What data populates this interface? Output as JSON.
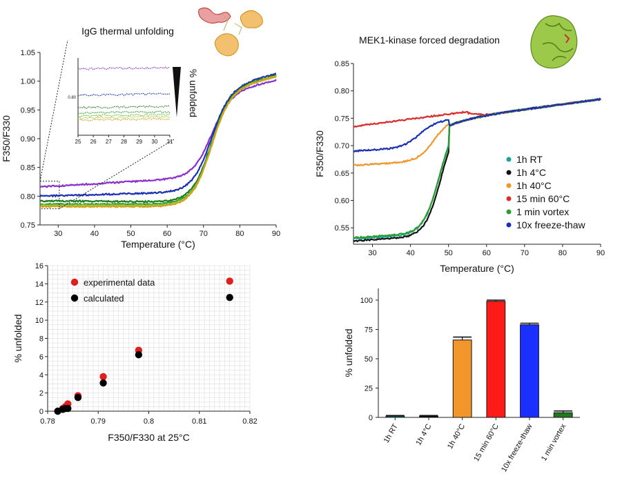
{
  "chart_data": [
    {
      "id": "igg",
      "type": "line",
      "title": "IgG thermal unfolding",
      "xlabel": "Temperature (°C)",
      "ylabel": "F350/F330",
      "xlim": [
        25,
        90
      ],
      "ylim": [
        0.75,
        1.05
      ],
      "xticks": [
        "30",
        "40",
        "50",
        "60",
        "70",
        "80",
        "90"
      ],
      "yticks": [
        "0.75",
        "0.80",
        "0.85",
        "0.90",
        "0.95",
        "1.00",
        "1.05"
      ],
      "tm": 72,
      "final_base": 0.99,
      "final_slope": 0.00155,
      "series": [
        {
          "color": "#8b2fd1",
          "start": 0.816,
          "mid": 0.829,
          "end": 1.002
        },
        {
          "color": "#1b2fb5",
          "start": 0.8,
          "mid": 0.806,
          "end": 1.012
        },
        {
          "color": "#1f7a1f",
          "start": 0.792,
          "mid": 0.79,
          "end": 1.01
        },
        {
          "color": "#2e9b2e",
          "start": 0.786,
          "mid": 0.786,
          "end": 1.008
        },
        {
          "color": "#6cbf3a",
          "start": 0.784,
          "mid": 0.784,
          "end": 1.008
        },
        {
          "color": "#a8cf3a",
          "start": 0.783,
          "mid": 0.783,
          "end": 1.008
        },
        {
          "color": "#d4a020",
          "start": 0.782,
          "mid": 0.782,
          "end": 1.008
        }
      ],
      "inset": {
        "xticks": [
          "25",
          "26",
          "27",
          "28",
          "29",
          "30",
          "31"
        ],
        "ytick": "0.80",
        "label": "% unfolded"
      }
    },
    {
      "id": "mek1",
      "type": "line",
      "title": "MEK1-kinase forced degradation",
      "xlabel": "Temperature (°C)",
      "ylabel": "F350/F330",
      "xlim": [
        25,
        90
      ],
      "ylim": [
        0.52,
        0.85
      ],
      "xticks": [
        "30",
        "40",
        "50",
        "60",
        "70",
        "80",
        "90"
      ],
      "yticks": [
        "0.55",
        "0.60",
        "0.65",
        "0.70",
        "0.75",
        "0.80",
        "0.85"
      ],
      "legend": [
        "1h RT",
        "1h 4°C",
        "1h 40°C",
        "15 min 60°C",
        "1 min vortex",
        "10x freeze-thaw"
      ],
      "legend_colors": [
        "#1aa39a",
        "#111111",
        "#f0962b",
        "#dd2a2a",
        "#2e9b2e",
        "#1b2fb5"
      ],
      "series": [
        {
          "name": "1h RT",
          "color": "#1aa39a",
          "start": 0.53,
          "tm": 47.5
        },
        {
          "name": "1h 4°C",
          "color": "#111111",
          "start": 0.526,
          "tm": 48.0
        },
        {
          "name": "1h 40°C",
          "color": "#f0962b",
          "start": 0.664,
          "tm": 46.0
        },
        {
          "name": "15 min 60°C",
          "color": "#dd2a2a",
          "start": 0.735,
          "tm": 30.0
        },
        {
          "name": "1 min vortex",
          "color": "#2e9b2e",
          "start": 0.532,
          "tm": 47.6
        },
        {
          "name": "10x freeze-thaw",
          "color": "#1b2fb5",
          "start": 0.69,
          "tm": 42.0
        }
      ]
    },
    {
      "id": "unfolded-scatter",
      "type": "scatter",
      "xlabel": "F350/F330 at 25°C",
      "ylabel": "% unfolded",
      "xlim": [
        0.78,
        0.82
      ],
      "ylim": [
        0,
        16
      ],
      "xticks": [
        "0.78",
        "0.79",
        "0.8",
        "0.81",
        "0.82"
      ],
      "yticks": [
        "0",
        "2",
        "4",
        "6",
        "8",
        "10",
        "12",
        "14",
        "16"
      ],
      "legend": [
        "experimental data",
        "calculated"
      ],
      "series": [
        {
          "name": "experimental data",
          "color": "#e21d1d",
          "points": [
            [
              0.782,
              0.0
            ],
            [
              0.783,
              0.3
            ],
            [
              0.7835,
              0.5
            ],
            [
              0.784,
              0.8
            ],
            [
              0.786,
              1.7
            ],
            [
              0.791,
              3.8
            ],
            [
              0.798,
              6.7
            ],
            [
              0.816,
              14.3
            ]
          ]
        },
        {
          "name": "calculated",
          "color": "#000000",
          "points": [
            [
              0.782,
              0.0
            ],
            [
              0.783,
              0.2
            ],
            [
              0.7835,
              0.3
            ],
            [
              0.784,
              0.3
            ],
            [
              0.786,
              1.5
            ],
            [
              0.791,
              3.1
            ],
            [
              0.798,
              6.2
            ],
            [
              0.816,
              12.5
            ]
          ]
        }
      ]
    },
    {
      "id": "mek1-bars",
      "type": "bar",
      "ylabel": "% unfolded",
      "ylim": [
        0,
        110
      ],
      "yticks": [
        "0",
        "25",
        "50",
        "75",
        "100"
      ],
      "categories": [
        "1h RT",
        "1h 4°C",
        "1h 40°C",
        "15 min 60°C",
        "10x freeze-thaw",
        "1 min vortex"
      ],
      "values": [
        1,
        1,
        66,
        99,
        79,
        4
      ],
      "errors": [
        0.6,
        0.6,
        2.5,
        1.0,
        1.3,
        1.5
      ],
      "colors": [
        "#1aa39a",
        "#111111",
        "#f0962b",
        "#ff1a1a",
        "#1b2fff",
        "#1f7a1f"
      ]
    }
  ]
}
